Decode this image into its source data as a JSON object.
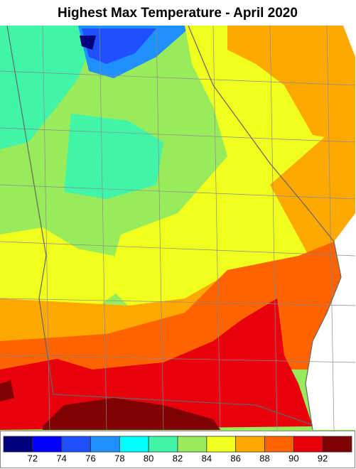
{
  "title": "Highest Max Temperature - April 2020",
  "legend": {
    "colors": [
      "#00007f",
      "#0000ff",
      "#1e50ff",
      "#1e90ff",
      "#00ffff",
      "#40f5a8",
      "#98ec5c",
      "#f0ff1e",
      "#ffa800",
      "#ff6400",
      "#e8000c",
      "#7f0000"
    ],
    "labels": [
      72,
      74,
      76,
      78,
      80,
      82,
      84,
      86,
      88,
      90,
      92
    ]
  }
}
